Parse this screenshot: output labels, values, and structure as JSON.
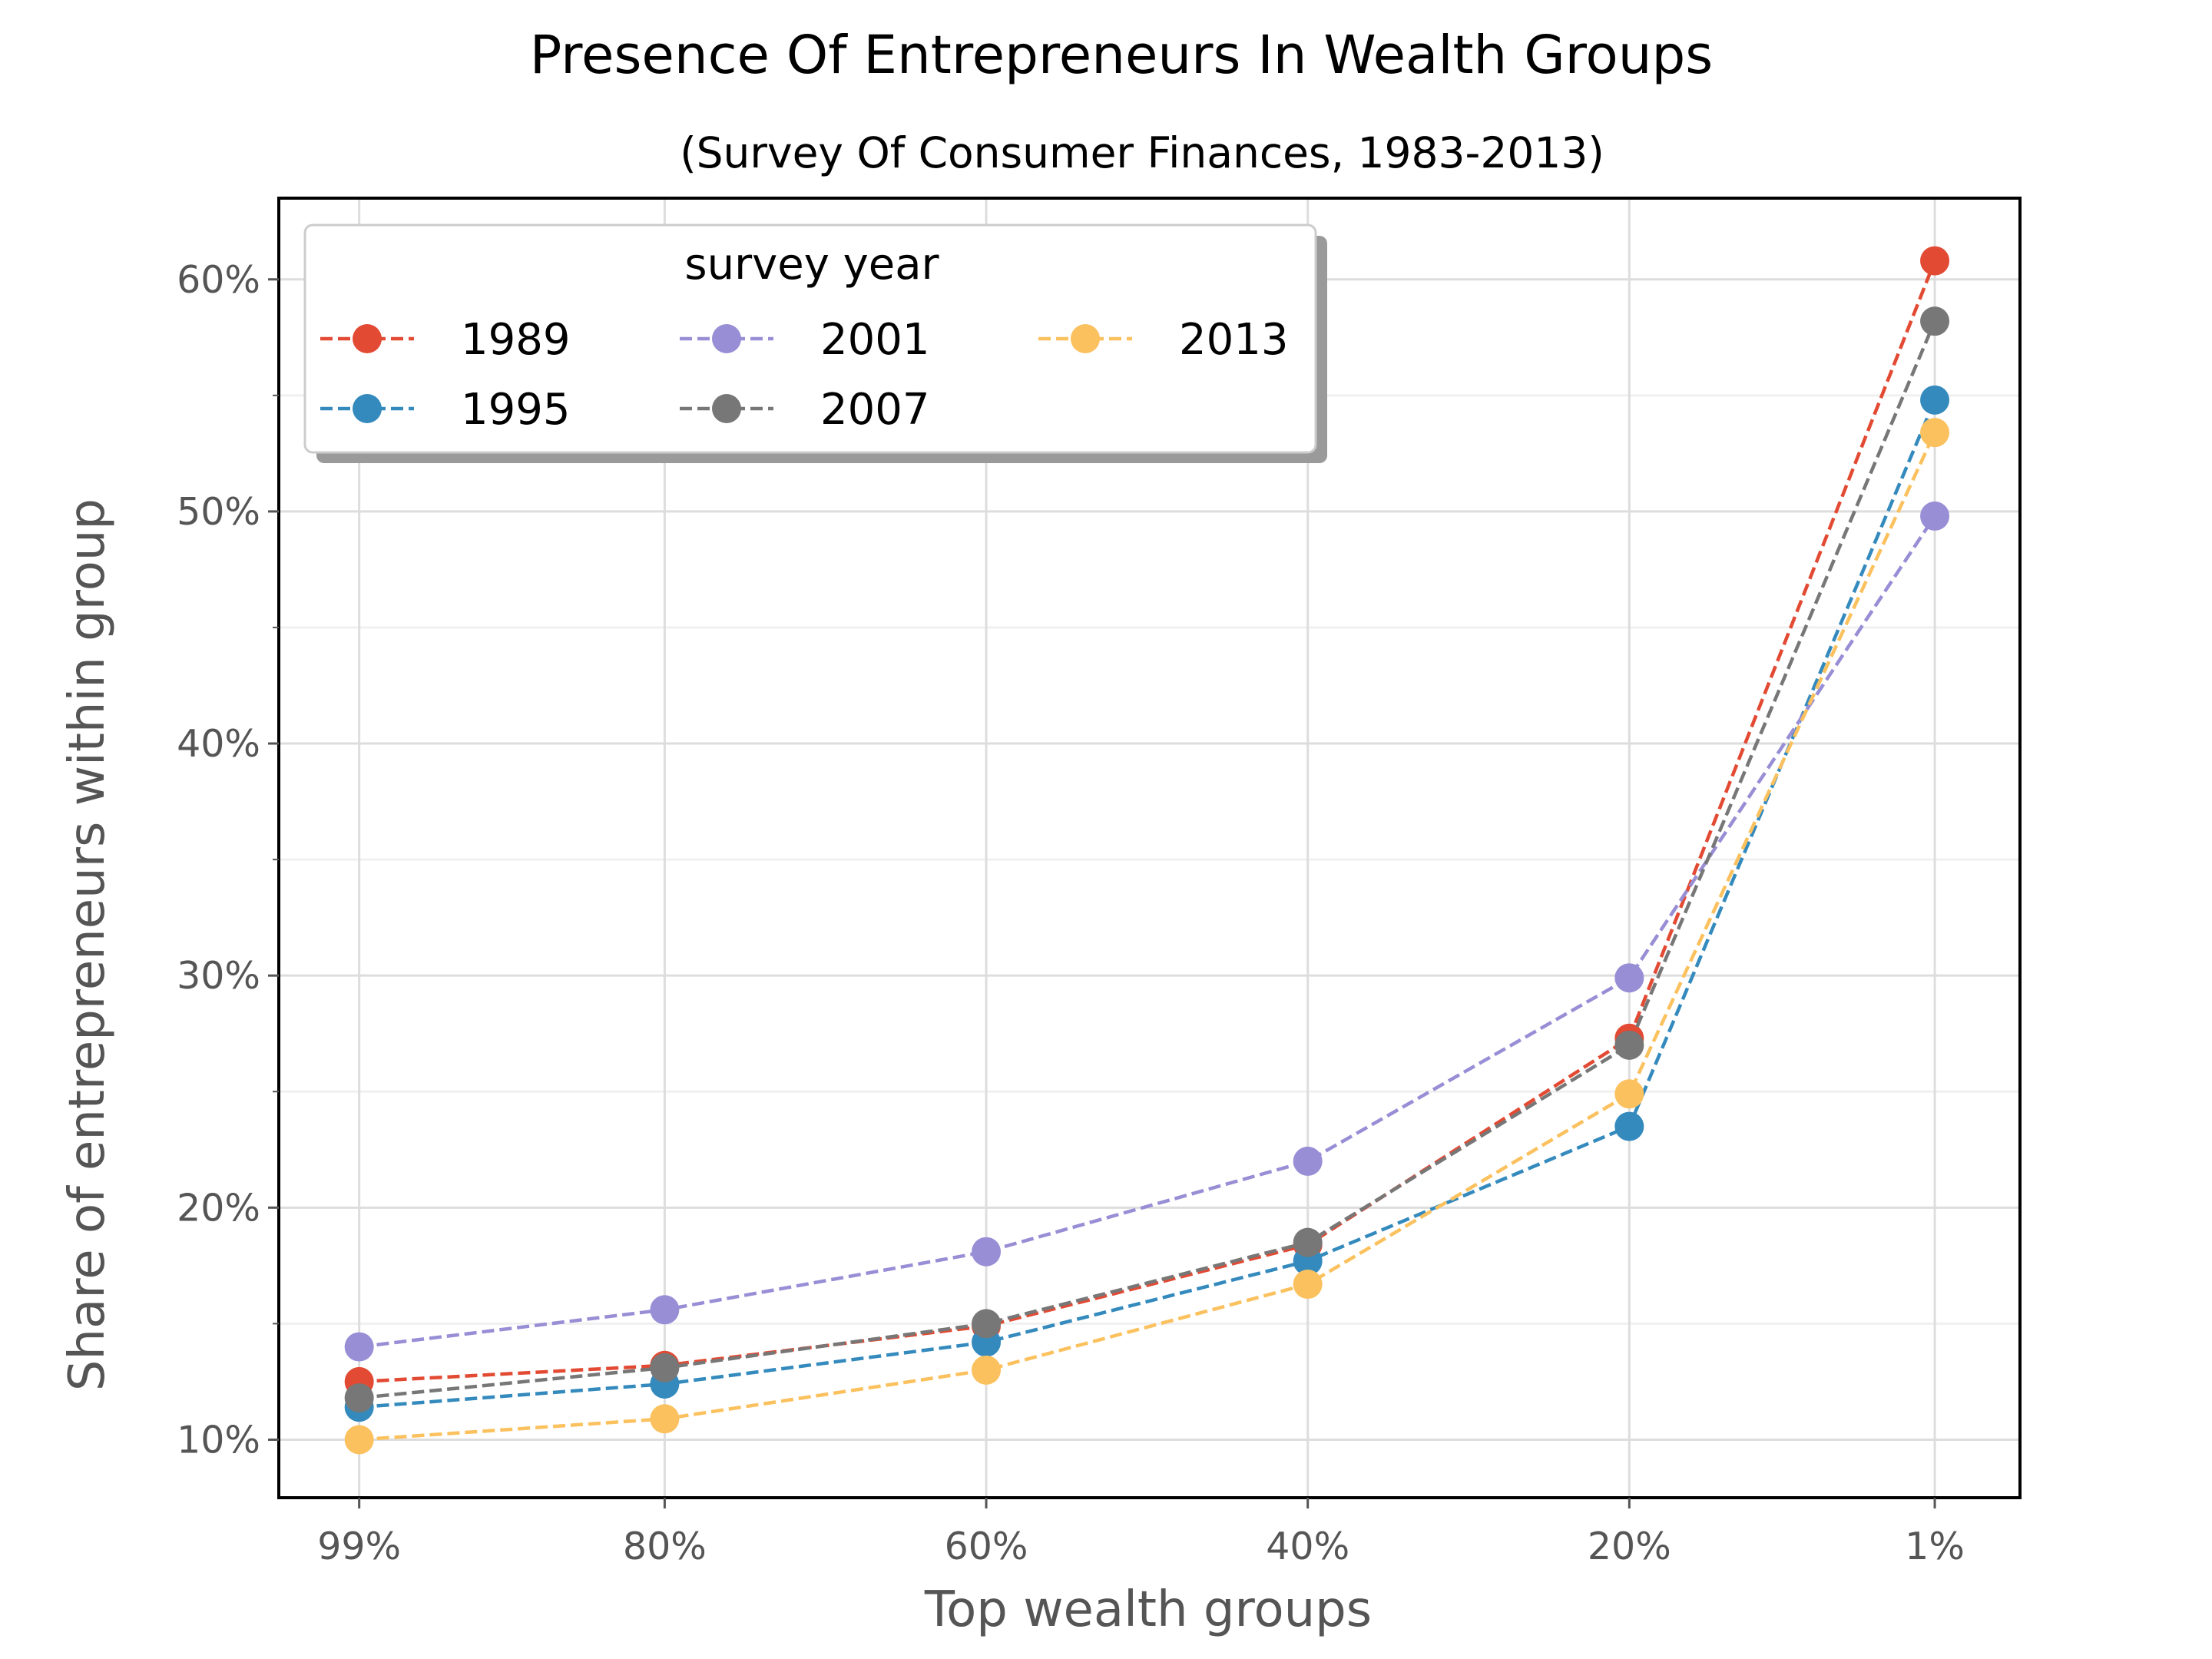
{
  "chart_data": {
    "type": "line",
    "title": "Presence Of Entrepreneurs In Wealth Groups",
    "subtitle": "(Survey Of Consumer Finances, 1983-2013)",
    "xlabel": "Top wealth groups",
    "ylabel": "Share of entrepreneurs within group",
    "categories": [
      "99%",
      "80%",
      "60%",
      "40%",
      "20%",
      "1%"
    ],
    "x_positions": [
      99,
      80,
      60,
      40,
      20,
      1
    ],
    "xlim": [
      104,
      -4.3
    ],
    "ylim": [
      7.5,
      63.5
    ],
    "yticks": [
      10,
      20,
      30,
      40,
      50,
      60
    ],
    "ytick_labels": [
      "10%",
      "20%",
      "30%",
      "40%",
      "50%",
      "60%"
    ],
    "yminor": [
      15,
      25,
      35,
      45,
      55
    ],
    "grid": true,
    "line_style": "dashed",
    "legend": {
      "title": "survey year",
      "placement": "top-left",
      "columns": 3
    },
    "series": [
      {
        "name": "1989",
        "color": "#E24A33",
        "values": [
          12.5,
          13.2,
          14.9,
          18.4,
          27.3,
          60.8
        ]
      },
      {
        "name": "1995",
        "color": "#348ABD",
        "values": [
          11.4,
          12.4,
          14.2,
          17.7,
          23.5,
          54.8
        ]
      },
      {
        "name": "2001",
        "color": "#988ED5",
        "values": [
          14.0,
          15.6,
          18.1,
          22.0,
          29.9,
          49.8
        ]
      },
      {
        "name": "2007",
        "color": "#777777",
        "values": [
          11.8,
          13.1,
          15.0,
          18.5,
          27.0,
          58.2
        ]
      },
      {
        "name": "2013",
        "color": "#FBC15E",
        "values": [
          10.0,
          10.9,
          13.0,
          16.7,
          24.9,
          53.4
        ]
      }
    ]
  }
}
